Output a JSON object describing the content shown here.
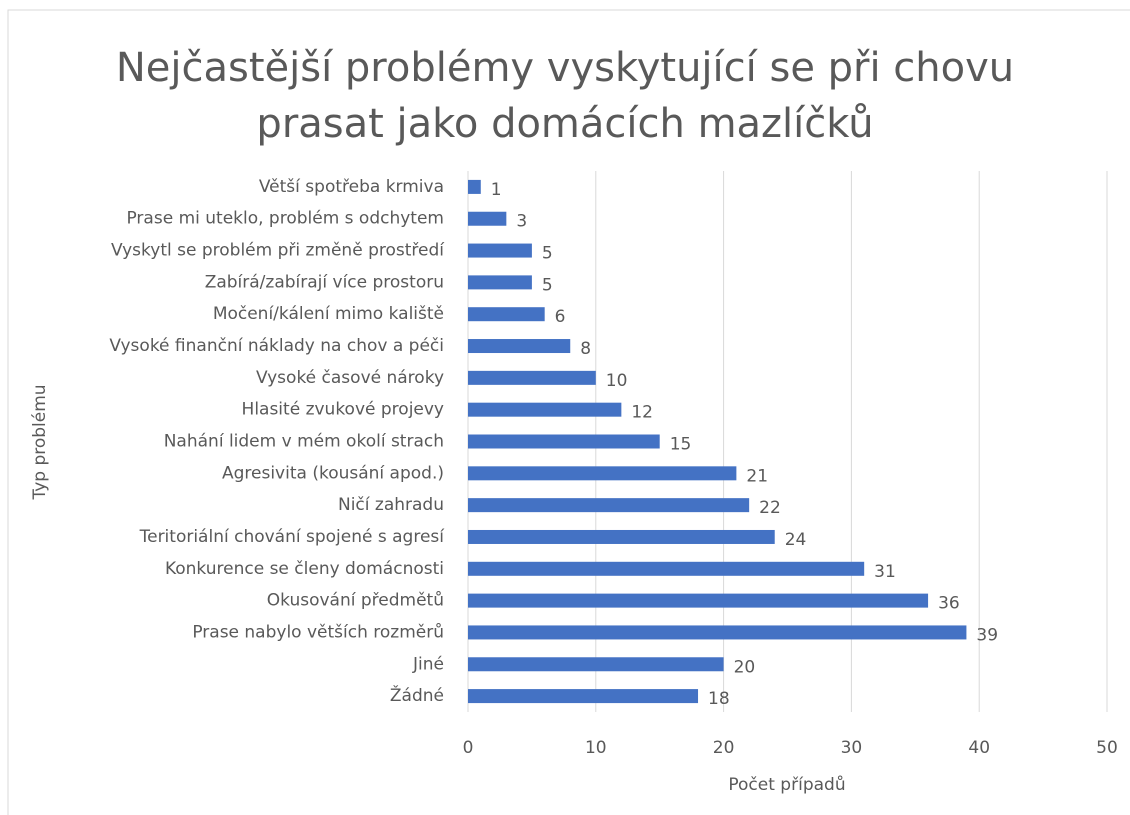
{
  "chart_data": {
    "type": "bar",
    "orientation": "horizontal",
    "title": "Nejčastější problémy vyskytující se při chovu prasat jako domácích mazlíčků",
    "x_label": "Počet případů",
    "y_label": "Typ problému",
    "categories": [
      "Větší spotřeba krmiva",
      "Prase mi uteklo,  problém s odchytem",
      "Vyskytl se problém při změně prostředí",
      "Zabírá/zabírají více prostoru",
      "Močení/kálení mimo kaliště",
      "Vysoké finanční náklady na chov a péči",
      "Vysoké časové nároky",
      "Hlasité zvukové projevy",
      "Nahání lidem v mém okolí strach",
      "Agresivita (kousání apod.)",
      "Ničí zahradu",
      "Teritoriální chování spojené s  agresí",
      "Konkurence se členy domácnosti",
      "Okusování předmětů",
      "Prase nabylo větších rozměrů",
      "Jiné",
      "Žádné"
    ],
    "values": [
      1,
      3,
      5,
      5,
      6,
      8,
      10,
      12,
      15,
      21,
      22,
      24,
      31,
      36,
      39,
      20,
      18
    ],
    "color": "#4472c4",
    "xlim": [
      0,
      50
    ],
    "xticks": [
      0,
      10,
      20,
      30,
      40,
      50
    ],
    "grid": true
  }
}
